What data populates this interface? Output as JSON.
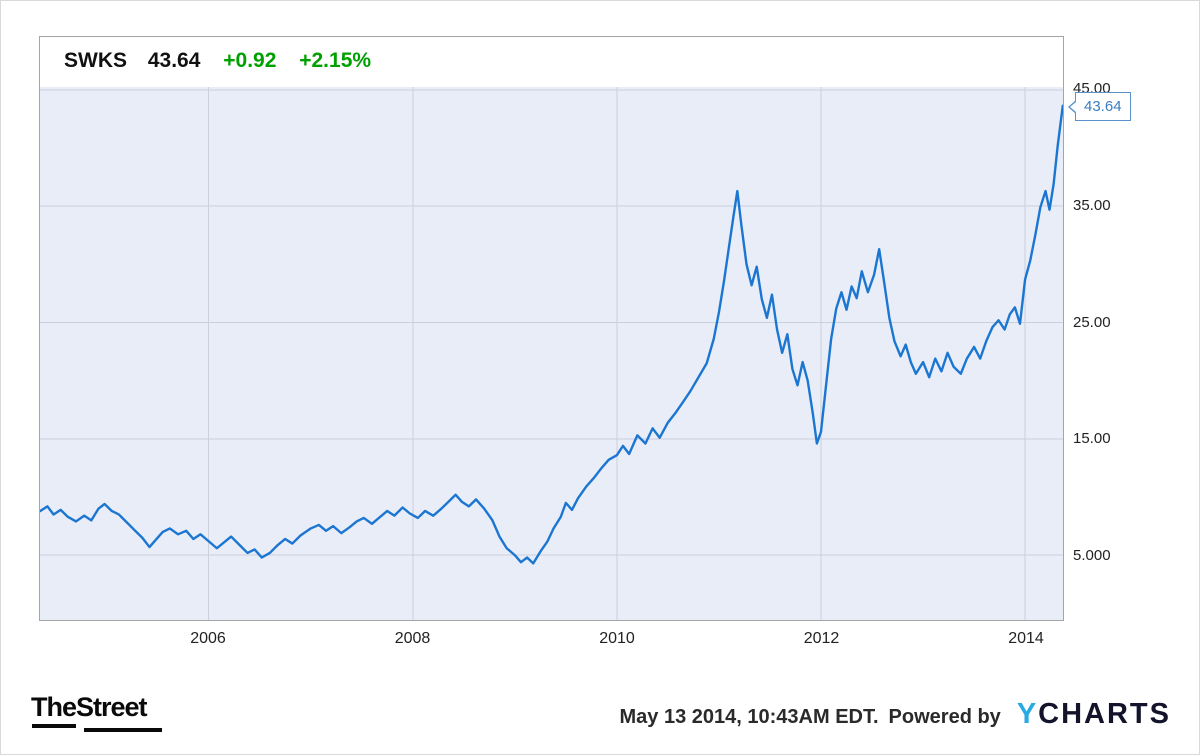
{
  "header": {
    "ticker": "SWKS",
    "price": "43.64",
    "change": "+0.92",
    "change_pct": "+2.15%",
    "change_color": "#00A000"
  },
  "callout": {
    "label": "43.64",
    "color": "#3A7DC0"
  },
  "chart_data": {
    "type": "line",
    "title": "SWKS 43.64 +0.92 +2.15%",
    "plot_bg": "#E9EDF7",
    "grid_color": "#C9D0DE",
    "legend": "none",
    "grid": "on",
    "y_axis_side": "right",
    "x_ticks": [
      {
        "year": 2006,
        "label": "2006"
      },
      {
        "year": 2008,
        "label": "2008"
      },
      {
        "year": 2010,
        "label": "2010"
      },
      {
        "year": 2012,
        "label": "2012"
      },
      {
        "year": 2014,
        "label": "2014"
      }
    ],
    "y_ticks": [
      {
        "value": 45,
        "label": "45.00"
      },
      {
        "value": 35,
        "label": "35.00"
      },
      {
        "value": 25,
        "label": "25.00"
      },
      {
        "value": 15,
        "label": "15.00"
      },
      {
        "value": 5,
        "label": "5.000"
      }
    ],
    "x_range": [
      2004.35,
      2014.37
    ],
    "series": [
      {
        "name": "SWKS",
        "color": "#1B76D1",
        "last_value": 43.64,
        "points": [
          [
            2004.35,
            8.8
          ],
          [
            2004.42,
            9.2
          ],
          [
            2004.48,
            8.5
          ],
          [
            2004.55,
            8.9
          ],
          [
            2004.62,
            8.3
          ],
          [
            2004.7,
            7.9
          ],
          [
            2004.78,
            8.4
          ],
          [
            2004.85,
            8.0
          ],
          [
            2004.92,
            9.0
          ],
          [
            2004.98,
            9.4
          ],
          [
            2005.05,
            8.8
          ],
          [
            2005.12,
            8.5
          ],
          [
            2005.2,
            7.8
          ],
          [
            2005.28,
            7.1
          ],
          [
            2005.35,
            6.5
          ],
          [
            2005.42,
            5.7
          ],
          [
            2005.48,
            6.3
          ],
          [
            2005.55,
            7.0
          ],
          [
            2005.62,
            7.3
          ],
          [
            2005.7,
            6.8
          ],
          [
            2005.78,
            7.1
          ],
          [
            2005.85,
            6.4
          ],
          [
            2005.92,
            6.8
          ],
          [
            2006.0,
            6.2
          ],
          [
            2006.08,
            5.6
          ],
          [
            2006.15,
            6.1
          ],
          [
            2006.22,
            6.6
          ],
          [
            2006.3,
            5.9
          ],
          [
            2006.38,
            5.2
          ],
          [
            2006.45,
            5.5
          ],
          [
            2006.52,
            4.8
          ],
          [
            2006.6,
            5.2
          ],
          [
            2006.68,
            5.9
          ],
          [
            2006.75,
            6.4
          ],
          [
            2006.82,
            6.0
          ],
          [
            2006.9,
            6.7
          ],
          [
            2007.0,
            7.3
          ],
          [
            2007.08,
            7.6
          ],
          [
            2007.15,
            7.1
          ],
          [
            2007.22,
            7.5
          ],
          [
            2007.3,
            6.9
          ],
          [
            2007.38,
            7.4
          ],
          [
            2007.45,
            7.9
          ],
          [
            2007.52,
            8.2
          ],
          [
            2007.6,
            7.7
          ],
          [
            2007.68,
            8.3
          ],
          [
            2007.75,
            8.8
          ],
          [
            2007.82,
            8.4
          ],
          [
            2007.9,
            9.1
          ],
          [
            2007.97,
            8.6
          ],
          [
            2008.05,
            8.2
          ],
          [
            2008.12,
            8.8
          ],
          [
            2008.2,
            8.4
          ],
          [
            2008.28,
            9.0
          ],
          [
            2008.35,
            9.6
          ],
          [
            2008.42,
            10.2
          ],
          [
            2008.48,
            9.6
          ],
          [
            2008.55,
            9.2
          ],
          [
            2008.62,
            9.8
          ],
          [
            2008.7,
            9.0
          ],
          [
            2008.78,
            8.0
          ],
          [
            2008.85,
            6.6
          ],
          [
            2008.92,
            5.6
          ],
          [
            2009.0,
            5.0
          ],
          [
            2009.06,
            4.4
          ],
          [
            2009.12,
            4.8
          ],
          [
            2009.18,
            4.3
          ],
          [
            2009.25,
            5.3
          ],
          [
            2009.32,
            6.2
          ],
          [
            2009.38,
            7.3
          ],
          [
            2009.45,
            8.3
          ],
          [
            2009.5,
            9.5
          ],
          [
            2009.56,
            8.9
          ],
          [
            2009.62,
            9.9
          ],
          [
            2009.7,
            10.9
          ],
          [
            2009.78,
            11.7
          ],
          [
            2009.85,
            12.5
          ],
          [
            2009.92,
            13.2
          ],
          [
            2010.0,
            13.6
          ],
          [
            2010.06,
            14.4
          ],
          [
            2010.12,
            13.7
          ],
          [
            2010.2,
            15.3
          ],
          [
            2010.28,
            14.6
          ],
          [
            2010.35,
            15.9
          ],
          [
            2010.42,
            15.1
          ],
          [
            2010.5,
            16.4
          ],
          [
            2010.58,
            17.3
          ],
          [
            2010.65,
            18.2
          ],
          [
            2010.72,
            19.1
          ],
          [
            2010.8,
            20.3
          ],
          [
            2010.88,
            21.5
          ],
          [
            2010.95,
            23.6
          ],
          [
            2011.0,
            25.9
          ],
          [
            2011.05,
            28.6
          ],
          [
            2011.1,
            31.6
          ],
          [
            2011.14,
            34.0
          ],
          [
            2011.18,
            36.3
          ],
          [
            2011.22,
            33.4
          ],
          [
            2011.27,
            30.0
          ],
          [
            2011.32,
            28.2
          ],
          [
            2011.37,
            29.8
          ],
          [
            2011.42,
            27.0
          ],
          [
            2011.47,
            25.4
          ],
          [
            2011.52,
            27.4
          ],
          [
            2011.57,
            24.4
          ],
          [
            2011.62,
            22.4
          ],
          [
            2011.67,
            24.0
          ],
          [
            2011.72,
            21.0
          ],
          [
            2011.77,
            19.6
          ],
          [
            2011.82,
            21.6
          ],
          [
            2011.87,
            20.0
          ],
          [
            2011.92,
            17.2
          ],
          [
            2011.96,
            14.6
          ],
          [
            2012.0,
            15.6
          ],
          [
            2012.05,
            19.6
          ],
          [
            2012.1,
            23.6
          ],
          [
            2012.15,
            26.2
          ],
          [
            2012.2,
            27.6
          ],
          [
            2012.25,
            26.1
          ],
          [
            2012.3,
            28.1
          ],
          [
            2012.35,
            27.1
          ],
          [
            2012.4,
            29.4
          ],
          [
            2012.46,
            27.6
          ],
          [
            2012.52,
            29.1
          ],
          [
            2012.57,
            31.3
          ],
          [
            2012.62,
            28.4
          ],
          [
            2012.67,
            25.4
          ],
          [
            2012.72,
            23.4
          ],
          [
            2012.78,
            22.1
          ],
          [
            2012.83,
            23.1
          ],
          [
            2012.88,
            21.6
          ],
          [
            2012.93,
            20.6
          ],
          [
            2013.0,
            21.6
          ],
          [
            2013.06,
            20.3
          ],
          [
            2013.12,
            21.9
          ],
          [
            2013.18,
            20.8
          ],
          [
            2013.24,
            22.4
          ],
          [
            2013.3,
            21.2
          ],
          [
            2013.37,
            20.6
          ],
          [
            2013.43,
            21.9
          ],
          [
            2013.5,
            22.9
          ],
          [
            2013.56,
            21.9
          ],
          [
            2013.62,
            23.4
          ],
          [
            2013.68,
            24.6
          ],
          [
            2013.74,
            25.2
          ],
          [
            2013.8,
            24.4
          ],
          [
            2013.85,
            25.7
          ],
          [
            2013.9,
            26.3
          ],
          [
            2013.95,
            24.9
          ],
          [
            2014.0,
            28.7
          ],
          [
            2014.05,
            30.3
          ],
          [
            2014.1,
            32.5
          ],
          [
            2014.15,
            34.9
          ],
          [
            2014.2,
            36.3
          ],
          [
            2014.24,
            34.7
          ],
          [
            2014.28,
            36.9
          ],
          [
            2014.32,
            40.2
          ],
          [
            2014.37,
            43.64
          ]
        ]
      }
    ]
  },
  "footer": {
    "brand": "TheStreet",
    "timestamp": "May 13 2014, 10:43AM EDT.",
    "powered_by": "Powered by",
    "ycharts": {
      "prefix": "Y",
      "rest": "CHARTS",
      "prefix_color": "#29ABE2",
      "rest_color": "#13132B"
    }
  }
}
